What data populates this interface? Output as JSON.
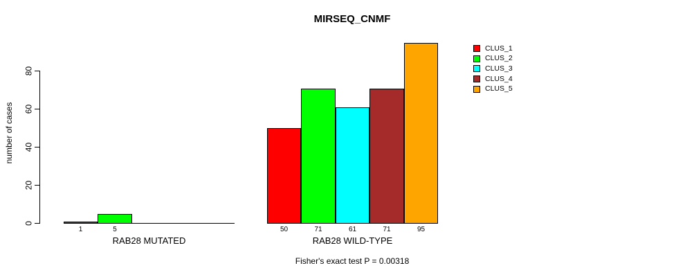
{
  "chart_data": {
    "type": "bar",
    "title": "MIRSEQ_CNMF",
    "ylabel": "number of cases",
    "ylim": [
      0,
      95
    ],
    "yticks": [
      0,
      20,
      40,
      60,
      80
    ],
    "grid": false,
    "bar_border_color": "#000000",
    "categories": [
      "RAB28 MUTATED",
      "RAB28 WILD-TYPE"
    ],
    "series": [
      {
        "name": "CLUS_1",
        "color": "#FF0000",
        "values": [
          1,
          50
        ]
      },
      {
        "name": "CLUS_2",
        "color": "#00FF00",
        "values": [
          5,
          71
        ]
      },
      {
        "name": "CLUS_3",
        "color": "#00FFFF",
        "values": [
          0,
          61
        ]
      },
      {
        "name": "CLUS_4",
        "color": "#A52A2A",
        "values": [
          0,
          71
        ]
      },
      {
        "name": "CLUS_5",
        "color": "#FFA500",
        "values": [
          0,
          95
        ]
      }
    ],
    "legend": {
      "position": "right",
      "entries": [
        "CLUS_1",
        "CLUS_2",
        "CLUS_3",
        "CLUS_4",
        "CLUS_5"
      ]
    },
    "annotation": "Fisher's exact test P = 0.00318"
  }
}
